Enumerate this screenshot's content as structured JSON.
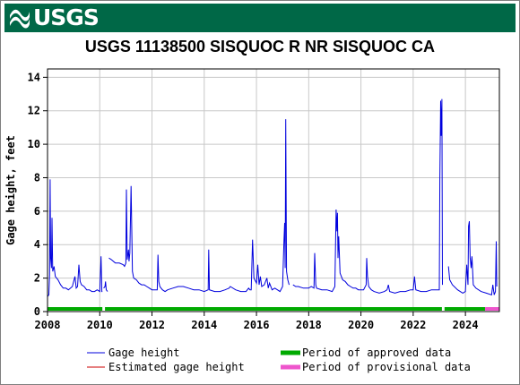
{
  "header": {
    "logo_text": "USGS",
    "logo_icon": "usgs-wave-icon",
    "banner_color": "#006847"
  },
  "chart_data": {
    "type": "line",
    "title": "USGS 11138500 SISQUOC R NR SISQUOC CA",
    "xlabel": "",
    "ylabel": "Gage height, feet",
    "xlim": [
      2008.0,
      2025.3
    ],
    "ylim": [
      0,
      14.5
    ],
    "x_ticks": [
      2008,
      2010,
      2012,
      2014,
      2016,
      2018,
      2020,
      2022,
      2024
    ],
    "y_ticks": [
      0,
      2,
      4,
      6,
      8,
      10,
      12,
      14
    ],
    "grid": true,
    "series": [
      {
        "name": "Gage height",
        "color": "#0000dd",
        "segments": [
          [
            [
              2008.0,
              0.9
            ],
            [
              2008.05,
              1.0
            ],
            [
              2008.08,
              2.2
            ],
            [
              2008.1,
              7.9
            ],
            [
              2008.12,
              3.2
            ],
            [
              2008.15,
              2.6
            ],
            [
              2008.17,
              5.6
            ],
            [
              2008.2,
              2.4
            ],
            [
              2008.25,
              2.7
            ],
            [
              2008.3,
              2.1
            ],
            [
              2008.4,
              1.9
            ],
            [
              2008.5,
              1.6
            ],
            [
              2008.6,
              1.4
            ],
            [
              2008.7,
              1.4
            ],
            [
              2008.8,
              1.3
            ],
            [
              2008.95,
              1.5
            ],
            [
              2009.05,
              2.1
            ],
            [
              2009.1,
              1.4
            ],
            [
              2009.15,
              1.5
            ],
            [
              2009.2,
              2.8
            ],
            [
              2009.25,
              1.8
            ],
            [
              2009.3,
              1.6
            ],
            [
              2009.4,
              1.5
            ],
            [
              2009.5,
              1.3
            ],
            [
              2009.6,
              1.3
            ],
            [
              2009.7,
              1.2
            ],
            [
              2009.8,
              1.2
            ],
            [
              2009.9,
              1.3
            ],
            [
              2010.0,
              1.2
            ],
            [
              2010.05,
              3.3
            ],
            [
              2010.08,
              1.2
            ],
            [
              2010.1,
              1.2
            ]
          ],
          [
            [
              2010.15,
              1.4
            ],
            [
              2010.2,
              1.5
            ],
            [
              2010.22,
              1.8
            ],
            [
              2010.25,
              1.3
            ],
            [
              2010.3,
              1.2
            ]
          ],
          [
            [
              2010.35,
              3.2
            ],
            [
              2010.45,
              3.1
            ],
            [
              2010.6,
              2.9
            ],
            [
              2010.75,
              2.9
            ],
            [
              2010.9,
              2.8
            ],
            [
              2010.95,
              2.7
            ],
            [
              2011.0,
              2.9
            ],
            [
              2011.02,
              7.3
            ],
            [
              2011.05,
              3.1
            ],
            [
              2011.1,
              3.7
            ],
            [
              2011.12,
              3.0
            ],
            [
              2011.15,
              3.5
            ],
            [
              2011.2,
              7.5
            ],
            [
              2011.25,
              2.4
            ],
            [
              2011.3,
              2.0
            ],
            [
              2011.4,
              1.9
            ],
            [
              2011.5,
              1.7
            ],
            [
              2011.6,
              1.6
            ],
            [
              2011.7,
              1.6
            ],
            [
              2011.8,
              1.5
            ],
            [
              2011.9,
              1.4
            ],
            [
              2012.0,
              1.3
            ],
            [
              2012.1,
              1.3
            ],
            [
              2012.2,
              1.3
            ],
            [
              2012.23,
              3.4
            ],
            [
              2012.26,
              1.8
            ],
            [
              2012.3,
              1.5
            ],
            [
              2012.4,
              1.3
            ],
            [
              2012.5,
              1.2
            ],
            [
              2012.6,
              1.3
            ],
            [
              2012.8,
              1.4
            ],
            [
              2013.0,
              1.5
            ],
            [
              2013.2,
              1.5
            ],
            [
              2013.4,
              1.4
            ],
            [
              2013.6,
              1.3
            ],
            [
              2013.8,
              1.3
            ],
            [
              2014.0,
              1.2
            ],
            [
              2014.15,
              1.3
            ],
            [
              2014.17,
              3.7
            ],
            [
              2014.2,
              1.3
            ],
            [
              2014.4,
              1.2
            ],
            [
              2014.6,
              1.2
            ],
            [
              2014.8,
              1.3
            ],
            [
              2014.95,
              1.4
            ],
            [
              2015.0,
              1.5
            ],
            [
              2015.2,
              1.3
            ],
            [
              2015.4,
              1.2
            ],
            [
              2015.6,
              1.2
            ],
            [
              2015.7,
              1.4
            ],
            [
              2015.75,
              1.3
            ],
            [
              2015.8,
              1.3
            ],
            [
              2015.85,
              4.3
            ],
            [
              2015.9,
              2.0
            ],
            [
              2016.0,
              1.7
            ],
            [
              2016.05,
              2.8
            ],
            [
              2016.1,
              1.6
            ],
            [
              2016.15,
              2.1
            ],
            [
              2016.2,
              1.5
            ],
            [
              2016.3,
              1.6
            ],
            [
              2016.4,
              2.0
            ],
            [
              2016.45,
              1.4
            ],
            [
              2016.5,
              1.7
            ],
            [
              2016.6,
              1.3
            ],
            [
              2016.7,
              1.4
            ],
            [
              2016.8,
              1.3
            ],
            [
              2016.9,
              1.2
            ],
            [
              2017.0,
              1.5
            ],
            [
              2017.05,
              4.2
            ],
            [
              2017.08,
              5.3
            ],
            [
              2017.1,
              2.6
            ],
            [
              2017.12,
              11.5
            ],
            [
              2017.15,
              2.4
            ],
            [
              2017.2,
              1.9
            ],
            [
              2017.25,
              1.6
            ]
          ],
          [
            [
              2017.4,
              1.6
            ],
            [
              2017.5,
              1.5
            ],
            [
              2017.6,
              1.5
            ],
            [
              2017.8,
              1.4
            ],
            [
              2018.0,
              1.4
            ],
            [
              2018.1,
              1.5
            ],
            [
              2018.2,
              1.4
            ],
            [
              2018.23,
              3.5
            ],
            [
              2018.27,
              1.6
            ],
            [
              2018.3,
              1.4
            ],
            [
              2018.5,
              1.3
            ],
            [
              2018.7,
              1.3
            ],
            [
              2018.9,
              1.2
            ],
            [
              2019.0,
              1.5
            ],
            [
              2019.05,
              6.1
            ],
            [
              2019.08,
              4.8
            ],
            [
              2019.1,
              5.9
            ],
            [
              2019.12,
              3.2
            ],
            [
              2019.15,
              4.5
            ],
            [
              2019.2,
              2.3
            ],
            [
              2019.3,
              1.9
            ],
            [
              2019.4,
              1.8
            ],
            [
              2019.5,
              1.6
            ],
            [
              2019.6,
              1.5
            ],
            [
              2019.7,
              1.4
            ],
            [
              2019.8,
              1.4
            ],
            [
              2019.9,
              1.3
            ],
            [
              2020.0,
              1.3
            ],
            [
              2020.1,
              1.3
            ],
            [
              2020.2,
              1.6
            ],
            [
              2020.22,
              3.2
            ],
            [
              2020.25,
              2.1
            ],
            [
              2020.3,
              1.5
            ],
            [
              2020.4,
              1.3
            ],
            [
              2020.5,
              1.2
            ],
            [
              2020.7,
              1.1
            ],
            [
              2020.9,
              1.2
            ],
            [
              2021.0,
              1.3
            ],
            [
              2021.05,
              1.6
            ],
            [
              2021.1,
              1.2
            ],
            [
              2021.3,
              1.1
            ],
            [
              2021.5,
              1.2
            ],
            [
              2021.7,
              1.2
            ],
            [
              2021.9,
              1.3
            ],
            [
              2022.0,
              1.3
            ],
            [
              2022.05,
              2.1
            ],
            [
              2022.1,
              1.3
            ],
            [
              2022.3,
              1.2
            ],
            [
              2022.5,
              1.2
            ],
            [
              2022.7,
              1.3
            ],
            [
              2022.9,
              1.3
            ],
            [
              2023.0,
              1.3
            ],
            [
              2023.02,
              8.0
            ],
            [
              2023.05,
              12.6
            ],
            [
              2023.07,
              10.5
            ],
            [
              2023.1,
              12.7
            ],
            [
              2023.12,
              1.6
            ]
          ],
          [
            [
              2023.35,
              2.7
            ],
            [
              2023.4,
              1.9
            ],
            [
              2023.5,
              1.6
            ],
            [
              2023.7,
              1.3
            ],
            [
              2023.9,
              1.1
            ],
            [
              2024.0,
              1.2
            ],
            [
              2024.05,
              2.8
            ],
            [
              2024.1,
              1.6
            ],
            [
              2024.12,
              5.1
            ],
            [
              2024.15,
              5.4
            ],
            [
              2024.18,
              3.2
            ],
            [
              2024.22,
              2.6
            ],
            [
              2024.25,
              3.3
            ],
            [
              2024.3,
              1.6
            ],
            [
              2024.4,
              1.4
            ],
            [
              2024.6,
              1.2
            ],
            [
              2024.8,
              1.1
            ],
            [
              2025.0,
              1.0
            ],
            [
              2025.05,
              1.6
            ],
            [
              2025.1,
              1.0
            ],
            [
              2025.15,
              1.2
            ],
            [
              2025.18,
              4.2
            ],
            [
              2025.2,
              1.5
            ]
          ]
        ]
      }
    ],
    "periods": [
      {
        "name": "Period of approved data",
        "color": "#00aa00",
        "ranges": [
          [
            2008.0,
            2010.1
          ],
          [
            2010.2,
            2023.1
          ],
          [
            2023.2,
            2024.75
          ]
        ]
      },
      {
        "name": "Period of provisional data",
        "color": "#ee55cc",
        "ranges": [
          [
            2024.75,
            2025.3
          ]
        ]
      }
    ],
    "legend": [
      {
        "label": "Gage height",
        "color": "#0000dd",
        "style": "line"
      },
      {
        "label": "Period of approved data",
        "color": "#00aa00",
        "style": "bar"
      },
      {
        "label": "Estimated gage height",
        "color": "#cc0000",
        "style": "line"
      },
      {
        "label": "Period of provisional data",
        "color": "#ee55cc",
        "style": "bar"
      }
    ],
    "legend_position": "bottom"
  }
}
